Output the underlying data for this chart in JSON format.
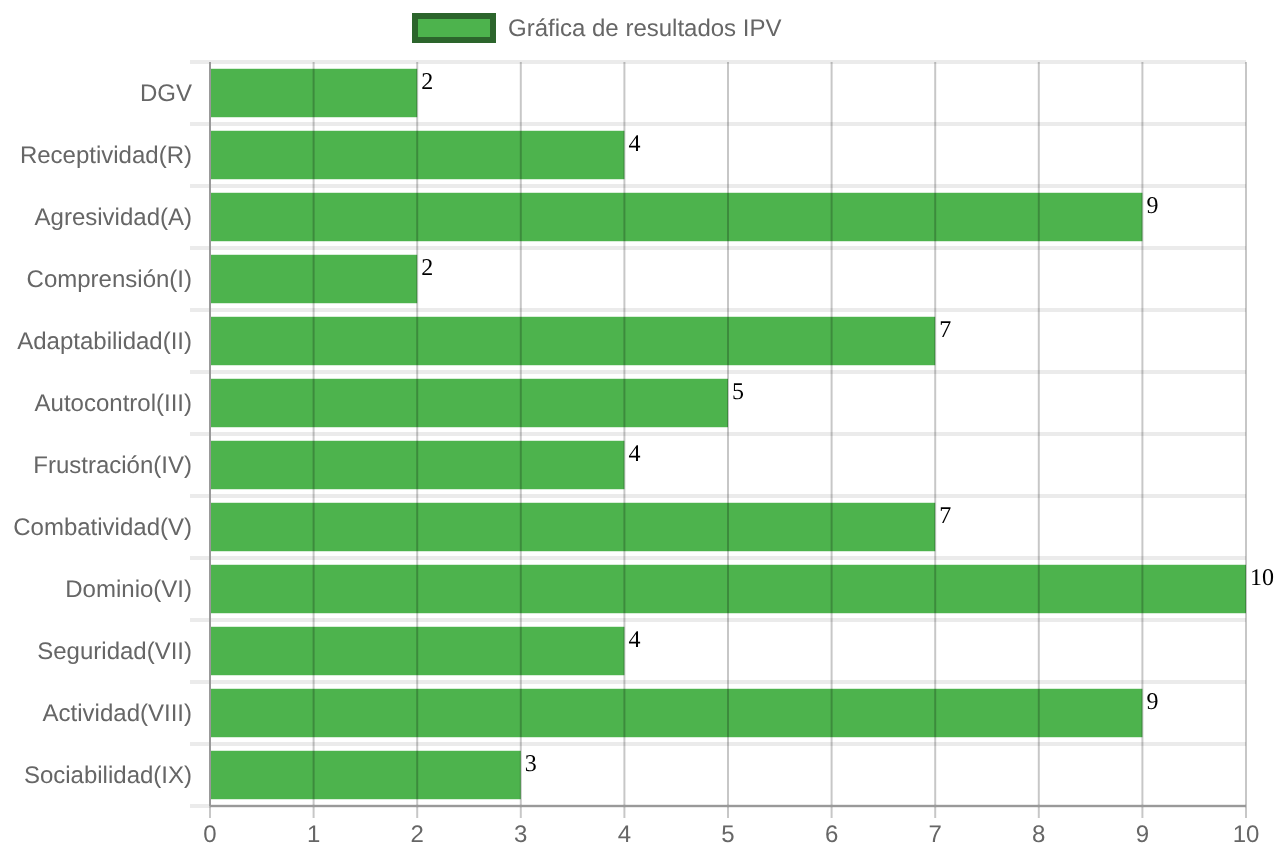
{
  "chart_data": {
    "type": "bar",
    "orientation": "horizontal",
    "categories": [
      "DGV",
      "Receptividad(R)",
      "Agresividad(A)",
      "Comprensión(I)",
      "Adaptabilidad(II)",
      "Autocontrol(III)",
      "Frustración(IV)",
      "Combatividad(V)",
      "Dominio(VI)",
      "Seguridad(VII)",
      "Actividad(VIII)",
      "Sociabilidad(IX)"
    ],
    "series": [
      {
        "name": "Gráfica de resultados IPV",
        "color": "#4db34d",
        "values": [
          2,
          4,
          9,
          2,
          7,
          5,
          4,
          7,
          10,
          4,
          9,
          3
        ]
      }
    ],
    "xlim": [
      0,
      10
    ],
    "xticks": [
      0,
      1,
      2,
      3,
      4,
      5,
      6,
      7,
      8,
      9,
      10
    ],
    "grid": true,
    "legend": "top",
    "data_labels": true
  }
}
